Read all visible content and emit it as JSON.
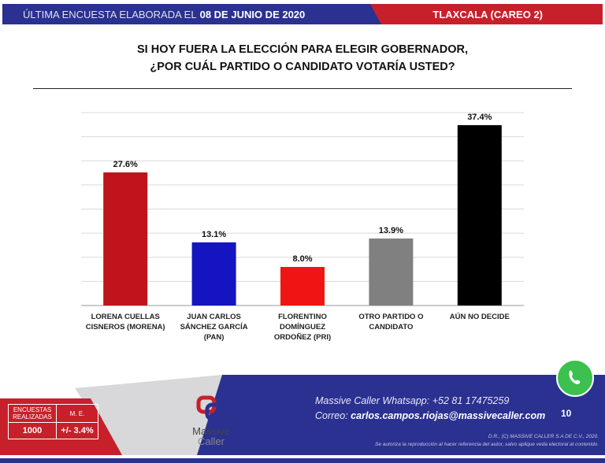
{
  "header": {
    "left_prefix": "ÚLTIMA ENCUESTA ELABORADA EL",
    "date": "08 DE JUNIO DE 2020",
    "region": "TLAXCALA (CAREO 2)"
  },
  "colors": {
    "header_blue": "#2a3190",
    "header_red": "#c8202a"
  },
  "chart_data": {
    "type": "bar",
    "title": "SI HOY FUERA LA ELECCIÓN PARA ELEGIR GOBERNADOR,",
    "subtitle": "¿POR CUÁL PARTIDO O CANDIDATO VOTARÍA USTED?",
    "categories": [
      [
        "LORENA CUELLAS",
        "CISNEROS (MORENA)"
      ],
      [
        "JUAN CARLOS",
        "SÁNCHEZ GARCÍA",
        "(PAN)"
      ],
      [
        "FLORENTINO",
        "DOMÍNGUEZ",
        "ORDOÑEZ (PRI)"
      ],
      [
        "OTRO PARTIDO O",
        "CANDIDATO"
      ],
      [
        "AÚN NO DECIDE"
      ]
    ],
    "values": [
      27.6,
      13.1,
      8.0,
      13.9,
      37.4
    ],
    "labels": [
      "27.6%",
      "13.1%",
      "8.0%",
      "13.9%",
      "37.4%"
    ],
    "colors": [
      "#c0141c",
      "#1414c0",
      "#f01414",
      "#808080",
      "#000000"
    ],
    "ylim": [
      0,
      40
    ],
    "grid": true,
    "grid_step": 5
  },
  "footer": {
    "table": {
      "h1": "ENCUESTAS REALIZADAS",
      "h2": "M. E.",
      "v1": "1000",
      "v2": "+/- 3.4%"
    },
    "logo": {
      "line1": "Massive",
      "line2": "Caller"
    },
    "whatsapp_label": "Massive Caller Whatsapp:",
    "whatsapp": "+52 81 17475259",
    "email_label": "Correo:",
    "email": "carlos.campos.riojas@massivecaller.com",
    "page": "10",
    "copyright": "D.R., (C) MASSIVE CALLER S.A DE C.V., 2020.",
    "notice": "Se autoriza la reproducción al hacer referencia del autor, salvo aplique veda electoral al contenido.",
    "icon": "whatsapp-icon"
  }
}
